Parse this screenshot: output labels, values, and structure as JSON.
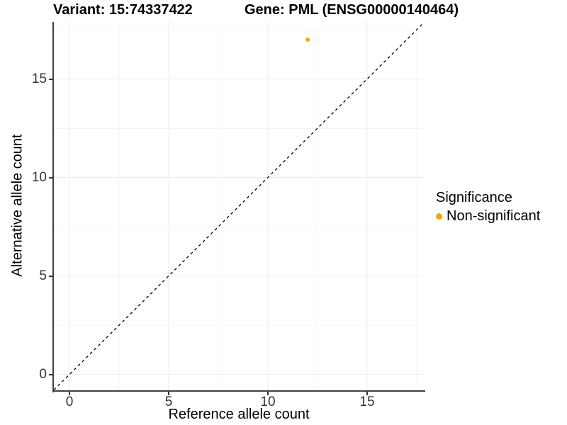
{
  "titles": {
    "variant": "Variant: 15:74337422",
    "gene": "Gene: PML (ENSG00000140464)"
  },
  "axes": {
    "x": {
      "label": "Reference allele count",
      "ticks": [
        "0",
        "5",
        "10",
        "15"
      ]
    },
    "y": {
      "label": "Alternative allele count",
      "ticks": [
        "0",
        "5",
        "10",
        "15"
      ]
    }
  },
  "legend": {
    "title": "Significance",
    "items": [
      {
        "label": "Non-significant",
        "color": "#FFA500",
        "marker": "dot-icon"
      }
    ]
  },
  "colors": {
    "point": "#FFA500",
    "axis_line": "#404040",
    "grid_major": "#ececec",
    "grid_minor": "#f4f4f4",
    "reference_line": "#000000"
  },
  "chart_data": {
    "type": "scatter",
    "title": "Variant: 15:74337422  |  Gene: PML (ENSG00000140464)",
    "xlabel": "Reference allele count",
    "ylabel": "Alternative allele count",
    "xlim": [
      0,
      17
    ],
    "ylim": [
      0,
      17
    ],
    "x_ticks": [
      0,
      5,
      10,
      15
    ],
    "y_ticks": [
      0,
      5,
      10,
      15
    ],
    "grid": true,
    "legend_position": "right",
    "series": [
      {
        "name": "Non-significant",
        "color": "#FFA500",
        "points": [
          {
            "x": 12,
            "y": 17
          }
        ]
      }
    ],
    "reference_line": {
      "style": "dashed",
      "equation": "y = x",
      "slope": 1,
      "intercept": 0
    }
  }
}
